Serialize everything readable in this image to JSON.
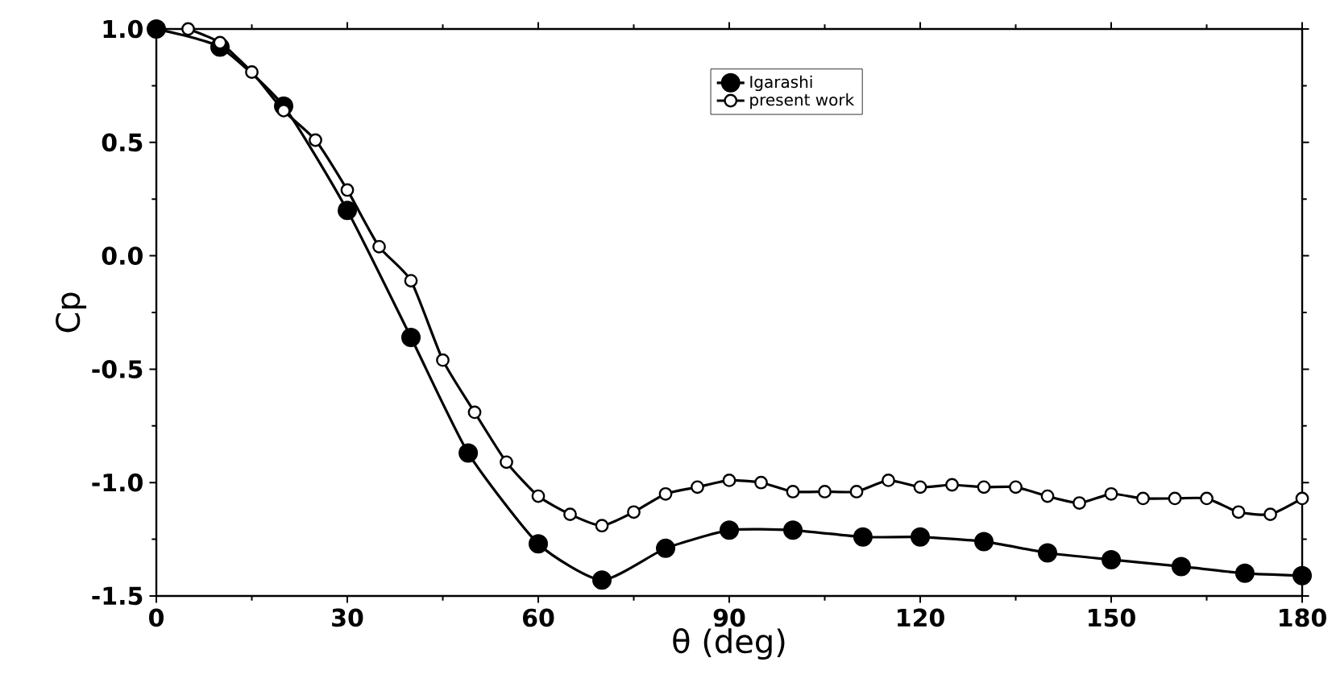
{
  "chart_data": {
    "type": "line",
    "xlabel": "θ (deg)",
    "ylabel": "Cp",
    "xlim": [
      0,
      180
    ],
    "ylim": [
      -1.5,
      1.0
    ],
    "xticks": [
      0,
      30,
      60,
      90,
      120,
      150,
      180
    ],
    "yticks": [
      {
        "value": -1.5,
        "label": "-1.5"
      },
      {
        "value": -1.0,
        "label": "-1.0"
      },
      {
        "value": -0.5,
        "label": "-0.5"
      },
      {
        "value": 0.0,
        "label": "0.0"
      },
      {
        "value": 0.5,
        "label": "0.5"
      },
      {
        "value": 1.0,
        "label": "1.0"
      }
    ],
    "grid": false,
    "legend": "top",
    "marker": "circle",
    "line_style": "solid",
    "series": [
      {
        "name": "Igarashi",
        "color": "#000000",
        "x": [
          0,
          10,
          20,
          30,
          40,
          49,
          60,
          70,
          80,
          90,
          100,
          111,
          120,
          130,
          140,
          150,
          161,
          171,
          180
        ],
        "values": [
          1.0,
          0.92,
          0.66,
          0.2,
          -0.36,
          -0.87,
          -1.27,
          -1.43,
          -1.29,
          -1.21,
          -1.21,
          -1.24,
          -1.24,
          -1.26,
          -1.31,
          -1.34,
          -1.37,
          -1.4,
          -1.41
        ]
      },
      {
        "name": "present work",
        "color": "#000000",
        "x": [
          5,
          10,
          15,
          20,
          25,
          30,
          35,
          40,
          45,
          50,
          55,
          60,
          65,
          70,
          75,
          80,
          85,
          90,
          95,
          100,
          105,
          110,
          115,
          120,
          125,
          130,
          135,
          140,
          145,
          150,
          155,
          160,
          165,
          170,
          175,
          180
        ],
        "values": [
          1.0,
          0.94,
          0.81,
          0.64,
          0.51,
          0.29,
          0.04,
          -0.11,
          -0.46,
          -0.69,
          -0.91,
          -1.06,
          -1.14,
          -1.19,
          -1.13,
          -1.05,
          -1.02,
          -0.99,
          -1.0,
          -1.04,
          -1.04,
          -1.04,
          -0.99,
          -1.02,
          -1.01,
          -1.02,
          -1.02,
          -1.06,
          -1.09,
          -1.05,
          -1.07,
          -1.07,
          -1.07,
          -1.13,
          -1.14,
          -1.07
        ]
      }
    ]
  }
}
